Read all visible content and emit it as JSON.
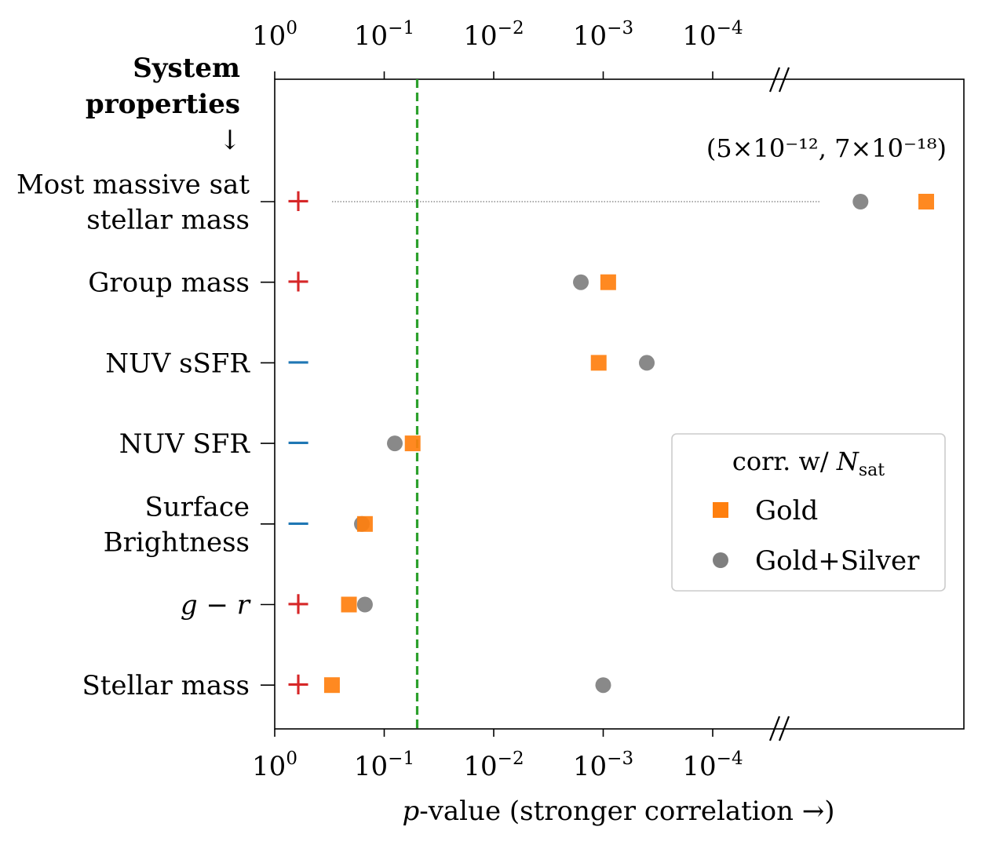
{
  "chart_data": {
    "type": "scatter",
    "x_scale": "log-reversed",
    "xlabel_prefix": "p",
    "xlabel_rest": "-value (stronger correlation →)",
    "x_ticks": [
      {
        "value": 1,
        "base": "10",
        "exp": "0"
      },
      {
        "value": 0.1,
        "base": "10",
        "exp": "−1"
      },
      {
        "value": 0.01,
        "base": "10",
        "exp": "−2"
      },
      {
        "value": 0.001,
        "base": "10",
        "exp": "−3"
      },
      {
        "value": 0.0001,
        "base": "10",
        "exp": "−4"
      }
    ],
    "xlim_log10": [
      0,
      -6.3
    ],
    "axis_break_symbol": "//",
    "y_header_line1": "System",
    "y_header_line2": "properties",
    "y_header_arrow": "↓",
    "threshold": {
      "p": 0.05,
      "color": "#2ca02c",
      "style": "dashed"
    },
    "categories": [
      {
        "label_lines": [
          "Most massive sat",
          "stellar mass"
        ],
        "sign": "+"
      },
      {
        "label_lines": [
          "Group mass"
        ],
        "sign": "+"
      },
      {
        "label_lines": [
          "NUV sSFR"
        ],
        "sign": "−"
      },
      {
        "label_lines": [
          "NUV SFR"
        ],
        "sign": "−"
      },
      {
        "label_lines": [
          "Surface",
          "Brightness"
        ],
        "sign": "−"
      },
      {
        "label_lines": [
          "g − r"
        ],
        "sign": "+",
        "italic": true
      },
      {
        "label_lines": [
          "Stellar mass"
        ],
        "sign": "+"
      }
    ],
    "sign_colors": {
      "+": "#d62728",
      "−": "#1f77b4"
    },
    "series": [
      {
        "name": "Gold",
        "marker": "square",
        "color": "#ff7f0e",
        "p_values": [
          7e-18,
          0.0009,
          0.0011,
          0.055,
          0.15,
          0.21,
          0.3
        ]
      },
      {
        "name": "Gold+Silver",
        "marker": "circle",
        "color": "#7f7f7f",
        "p_values": [
          5e-12,
          0.0016,
          0.0004,
          0.08,
          0.16,
          0.15,
          0.001
        ]
      }
    ],
    "offscale_annotation": "(5×10⁻¹², 7×10⁻¹⁸)",
    "offscale_plot_log10": {
      "Gold": -5.95,
      "Gold+Silver": -5.35
    },
    "legend": {
      "title_prefix": "corr. w/ ",
      "title_var": "N",
      "title_sub": "sat",
      "position": "center-right"
    }
  }
}
